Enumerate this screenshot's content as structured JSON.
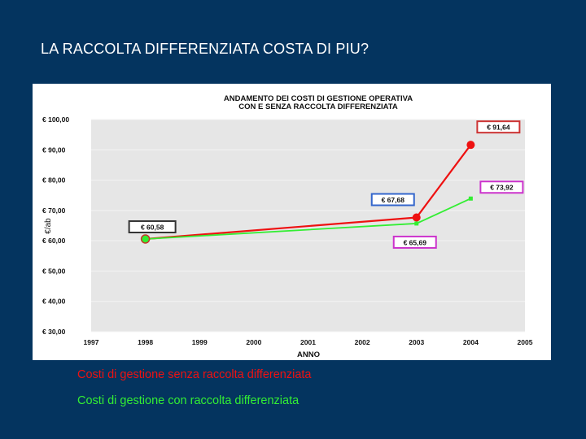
{
  "slide": {
    "title": "LA RACCOLTA DIFFERENZIATA COSTA DI PIU?"
  },
  "chart_data": {
    "type": "line",
    "title_line1": "ANDAMENTO DEI COSTI DI GESTIONE OPERATIVA",
    "title_line2": "CON E SENZA RACCOLTA DIFFERENZIATA",
    "xlabel": "ANNO",
    "ylabel": "€/ab",
    "x_ticks": [
      "1997",
      "1998",
      "1999",
      "2000",
      "2001",
      "2002",
      "2003",
      "2004",
      "2005"
    ],
    "y_ticks": [
      "€ 100,00",
      "€ 90,00",
      "€ 80,00",
      "€ 70,00",
      "€ 60,00",
      "€ 50,00",
      "€ 40,00",
      "€ 30,00"
    ],
    "xlim": [
      1997,
      2005
    ],
    "ylim": [
      30,
      100
    ],
    "grid": true,
    "series": [
      {
        "name": "Costi di gestione senza raccolta differenziata",
        "color": "#ee1111",
        "points": [
          {
            "x": 1998,
            "y": 60.58
          },
          {
            "x": 2003,
            "y": 67.68
          },
          {
            "x": 2004,
            "y": 91.64
          }
        ],
        "labels": [
          "€ 60,58",
          "€ 67,68",
          "€ 91,64"
        ]
      },
      {
        "name": "Costi di gestione con raccolta differenziata",
        "color": "#33ee33",
        "points": [
          {
            "x": 1998,
            "y": 60.58
          },
          {
            "x": 2003,
            "y": 65.69
          },
          {
            "x": 2004,
            "y": 73.92
          }
        ],
        "labels": [
          "",
          "€ 65,69",
          "€ 73,92"
        ]
      }
    ]
  },
  "legend": {
    "red_label": "Costi di gestione senza raccolta differenziata",
    "red_color": "#ee1111",
    "green_label": "Costi di gestione con raccolta differenziata",
    "green_color": "#33ee33"
  }
}
